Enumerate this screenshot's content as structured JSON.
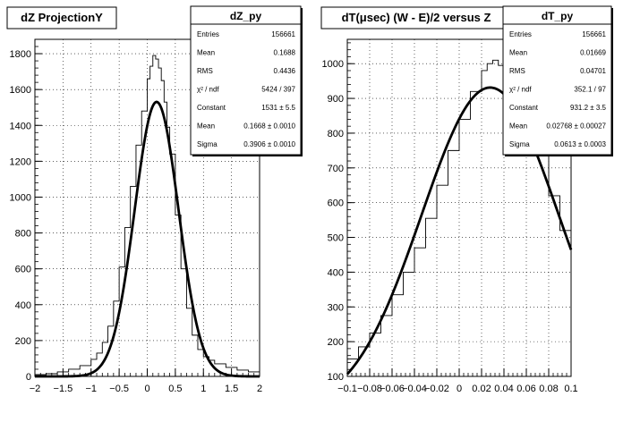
{
  "chart_data": [
    {
      "type": "histogram",
      "title": "dZ ProjectionY",
      "xlim": [
        -2,
        2
      ],
      "ylim": [
        0,
        1880
      ],
      "x_ticks": [
        -2,
        -1.5,
        -1,
        -0.5,
        0,
        0.5,
        1,
        1.5,
        2
      ],
      "x_tick_labels": [
        "−2",
        "−1.5",
        "−1",
        "−0.5",
        "0",
        "0.5",
        "1",
        "1.5",
        "2"
      ],
      "y_ticks": [
        0,
        200,
        400,
        600,
        800,
        1000,
        1200,
        1400,
        1600,
        1800
      ],
      "y_tick_labels": [
        "0",
        "200",
        "400",
        "600",
        "800",
        "1000",
        "1200",
        "1400",
        "1600",
        "1800"
      ],
      "grid": true,
      "histogram": {
        "x": [
          -2.0,
          -1.8,
          -1.6,
          -1.4,
          -1.2,
          -1.0,
          -0.9,
          -0.8,
          -0.7,
          -0.6,
          -0.5,
          -0.4,
          -0.3,
          -0.2,
          -0.1,
          0.0,
          0.05,
          0.1,
          0.15,
          0.2,
          0.25,
          0.3,
          0.35,
          0.4,
          0.5,
          0.6,
          0.7,
          0.8,
          0.9,
          1.0,
          1.1,
          1.2,
          1.4,
          1.6,
          1.8,
          2.0
        ],
        "y": [
          10,
          15,
          25,
          40,
          60,
          95,
          130,
          190,
          280,
          420,
          610,
          830,
          1060,
          1290,
          1480,
          1660,
          1730,
          1790,
          1770,
          1720,
          1650,
          1530,
          1390,
          1240,
          900,
          600,
          380,
          230,
          150,
          110,
          90,
          70,
          50,
          35,
          25,
          15
        ]
      },
      "fit": {
        "function": "gaus",
        "constant": 1531,
        "mean": 0.1668,
        "sigma": 0.3906
      },
      "stats_box": {
        "title": "dZ_py",
        "rows": [
          {
            "label": "Entries",
            "value": "156661"
          },
          {
            "label": "Mean",
            "value": "0.1688"
          },
          {
            "label": "RMS",
            "value": "0.4436"
          },
          {
            "label": "χ² / ndf",
            "value": "5424 / 397"
          },
          {
            "label": "Constant",
            "value": "1531 ± 5.5"
          },
          {
            "label": "Mean",
            "value": "0.1668 ± 0.0010"
          },
          {
            "label": "Sigma",
            "value": "0.3906 ± 0.0010"
          }
        ]
      }
    },
    {
      "type": "histogram",
      "title": "dT(μsec) (W - E)/2 versus Z",
      "xlim": [
        -0.1,
        0.1
      ],
      "ylim": [
        100,
        1070
      ],
      "x_ticks": [
        -0.1,
        -0.08,
        -0.06,
        -0.04,
        -0.02,
        0,
        0.02,
        0.04,
        0.06,
        0.08,
        0.1
      ],
      "x_tick_labels": [
        "−0.1",
        "−0.08",
        "−0.06",
        "−0.04",
        "−0.02",
        "0",
        "0.02",
        "0.04",
        "0.06",
        "0.08",
        "0.1"
      ],
      "y_ticks": [
        100,
        200,
        300,
        400,
        500,
        600,
        700,
        800,
        900,
        1000
      ],
      "y_tick_labels": [
        "100",
        "200",
        "300",
        "400",
        "500",
        "600",
        "700",
        "800",
        "900",
        "1000"
      ],
      "grid": true,
      "histogram": {
        "x": [
          -0.1,
          -0.09,
          -0.08,
          -0.07,
          -0.06,
          -0.05,
          -0.04,
          -0.03,
          -0.02,
          -0.01,
          0.0,
          0.01,
          0.02,
          0.025,
          0.03,
          0.035,
          0.04,
          0.05,
          0.06,
          0.07,
          0.08,
          0.09,
          0.1
        ],
        "y": [
          150,
          185,
          225,
          275,
          335,
          400,
          470,
          555,
          650,
          750,
          840,
          920,
          980,
          1000,
          1010,
          995,
          960,
          900,
          850,
          740,
          620,
          520,
          455
        ]
      },
      "fit": {
        "function": "gaus",
        "constant": 931.2,
        "mean": 0.02768,
        "sigma": 0.0613
      },
      "stats_box": {
        "title": "dT_py",
        "rows": [
          {
            "label": "Entries",
            "value": "156661"
          },
          {
            "label": "Mean",
            "value": "0.01669"
          },
          {
            "label": "RMS",
            "value": "0.04701"
          },
          {
            "label": "χ² / ndf",
            "value": "352.1 / 97"
          },
          {
            "label": "Constant",
            "value": "931.2 ± 3.5"
          },
          {
            "label": "Mean",
            "value": "0.02768 ± 0.00027"
          },
          {
            "label": "Sigma",
            "value": "0.0613 ± 0.0003"
          }
        ]
      }
    }
  ]
}
